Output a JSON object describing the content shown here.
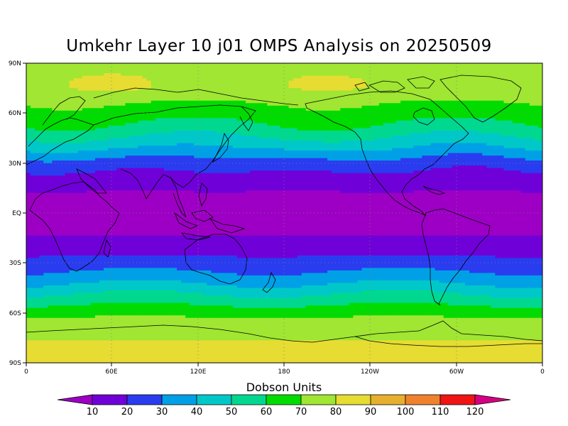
{
  "title": "Umkehr Layer 10 j01 OMPS Analysis on 20250509",
  "colorbar": {
    "title": "Dobson Units",
    "ticks": [
      "10",
      "20",
      "30",
      "40",
      "50",
      "60",
      "70",
      "80",
      "90",
      "100",
      "110",
      "120"
    ],
    "colors": [
      "#9d00c4",
      "#7000d8",
      "#2a3cf0",
      "#00a0e6",
      "#00c8c8",
      "#00d890",
      "#00dc00",
      "#a0e632",
      "#e6dc32",
      "#e6af2d",
      "#f0822d",
      "#f01414",
      "#d70082"
    ]
  },
  "lat_labels": [
    "90N",
    "60N",
    "30N",
    "EQ",
    "30S",
    "60S",
    "90S"
  ],
  "lon_labels": [
    "0",
    "60E",
    "120E",
    "180",
    "120W",
    "60W",
    "0"
  ],
  "chart_data": {
    "type": "heatmap",
    "title": "Umkehr Layer 10 j01 OMPS Analysis on 20250509",
    "units": "Dobson Units",
    "levels": [
      10,
      20,
      30,
      40,
      50,
      60,
      70,
      80,
      90,
      100,
      110,
      120
    ],
    "x_range": [
      0,
      360
    ],
    "y_range": [
      -90,
      90
    ],
    "zonal_profile": [
      {
        "lat": 90,
        "value": 75
      },
      {
        "lat": 75,
        "value": 76
      },
      {
        "lat": 60,
        "value": 66
      },
      {
        "lat": 50,
        "value": 56
      },
      {
        "lat": 40,
        "value": 42
      },
      {
        "lat": 30,
        "value": 25
      },
      {
        "lat": 20,
        "value": 15
      },
      {
        "lat": 10,
        "value": 8
      },
      {
        "lat": 0,
        "value": 7
      },
      {
        "lat": -10,
        "value": 8
      },
      {
        "lat": -20,
        "value": 15
      },
      {
        "lat": -30,
        "value": 24
      },
      {
        "lat": -40,
        "value": 36
      },
      {
        "lat": -50,
        "value": 52
      },
      {
        "lat": -60,
        "value": 67
      },
      {
        "lat": -70,
        "value": 78
      },
      {
        "lat": -90,
        "value": 84
      }
    ],
    "local_maxima": [
      {
        "lon": 60,
        "lat": 78,
        "value": 84
      },
      {
        "lon": 210,
        "lat": 78,
        "value": 83
      }
    ],
    "grid": true
  }
}
